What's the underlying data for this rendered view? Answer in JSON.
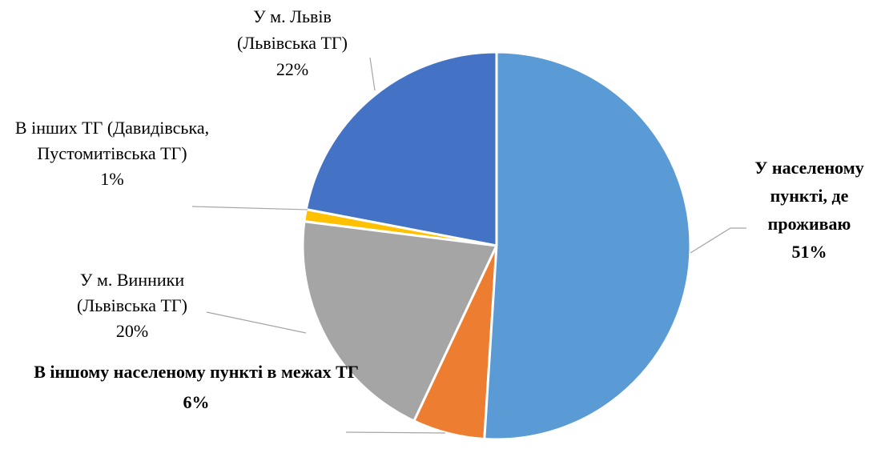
{
  "chart_data": {
    "type": "pie",
    "categories": [
      "У населеному пункті, де проживаю",
      "В іншому населеному пункті в межах ТГ",
      "У м. Винники (Львівська ТГ)",
      "В інших ТГ (Давидівська, Пустомитівська ТГ)",
      "У м. Львів (Львівська ТГ)"
    ],
    "values": [
      51,
      6,
      20,
      1,
      22
    ],
    "value_labels": [
      "51%",
      "6%",
      "20%",
      "1%",
      "22%"
    ],
    "colors": [
      "#5b9bd5",
      "#ed7d31",
      "#a5a5a5",
      "#ffc000",
      "#4472c4"
    ]
  }
}
